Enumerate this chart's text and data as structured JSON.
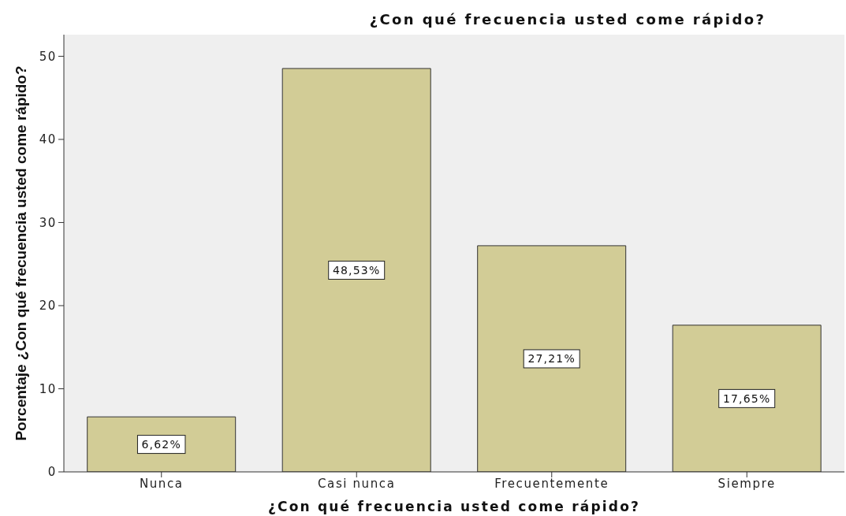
{
  "chart_data": {
    "type": "bar",
    "title": "¿Con qué frecuencia usted come rápido?",
    "xlabel": "¿Con qué frecuencia usted come rápido?",
    "ylabel": "Porcentaje ¿Con qué frecuencia usted come rápido?",
    "categories": [
      "Nunca",
      "Casi nunca",
      "Frecuentemente",
      "Siempre"
    ],
    "values": [
      6.62,
      48.53,
      27.21,
      17.65
    ],
    "value_labels": [
      "6,62%",
      "48,53%",
      "27,21%",
      "17,65%"
    ],
    "color": "#d2cc96",
    "ylim": [
      0,
      52.6
    ],
    "yticks": [
      0,
      10,
      20,
      30,
      40,
      50
    ]
  }
}
